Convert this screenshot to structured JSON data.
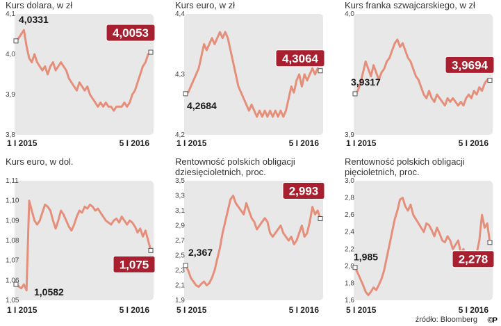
{
  "source": "źródło: Bloomberg",
  "logo": "©P",
  "chart_data": [
    {
      "type": "line",
      "title": "Kurs dolara, w zł",
      "yticks": [
        "4,1",
        "4,0",
        "3,9",
        "3,8"
      ],
      "ylim": [
        3.8,
        4.1
      ],
      "xticks": [
        "1 I 2015",
        "5 I 2016"
      ],
      "start_label": "4,0331",
      "end_label": "4,0053",
      "start_value": 4.0331,
      "end_value": 4.0053,
      "values": [
        4.033,
        4.04,
        4.05,
        4.06,
        4.02,
        3.99,
        3.98,
        4.0,
        3.98,
        3.97,
        3.96,
        3.97,
        3.95,
        3.97,
        3.98,
        3.96,
        3.97,
        3.98,
        3.97,
        3.96,
        3.94,
        3.93,
        3.92,
        3.91,
        3.93,
        3.92,
        3.91,
        3.92,
        3.9,
        3.89,
        3.88,
        3.87,
        3.88,
        3.87,
        3.88,
        3.87,
        3.87,
        3.86,
        3.87,
        3.87,
        3.87,
        3.88,
        3.87,
        3.88,
        3.9,
        3.91,
        3.93,
        3.95,
        3.97,
        3.98,
        4.0,
        4.005
      ]
    },
    {
      "type": "line",
      "title": "Kurs euro, w zł",
      "yticks": [
        "4,4",
        "4,3",
        "4,2"
      ],
      "ylim": [
        4.2,
        4.4
      ],
      "xticks": [
        "1 I 2015",
        "5 I 2016"
      ],
      "start_label": "4,2684",
      "end_label": "4,3064",
      "start_value": 4.2684,
      "end_value": 4.3064,
      "values": [
        4.268,
        4.27,
        4.28,
        4.29,
        4.3,
        4.31,
        4.33,
        4.35,
        4.34,
        4.35,
        4.36,
        4.35,
        4.36,
        4.37,
        4.36,
        4.37,
        4.36,
        4.34,
        4.32,
        4.3,
        4.28,
        4.27,
        4.26,
        4.25,
        4.24,
        4.25,
        4.24,
        4.23,
        4.24,
        4.23,
        4.24,
        4.23,
        4.24,
        4.23,
        4.24,
        4.23,
        4.24,
        4.23,
        4.24,
        4.26,
        4.28,
        4.27,
        4.29,
        4.3,
        4.28,
        4.3,
        4.29,
        4.3,
        4.31,
        4.3,
        4.31,
        4.306
      ]
    },
    {
      "type": "line",
      "title": "Kurs franka szwajcarskiego, w zł",
      "yticks": [
        "4,0",
        "3,9"
      ],
      "ylim": [
        3.82,
        4.15
      ],
      "xticks": [
        "1 I 2015",
        "5 I 2016"
      ],
      "start_label": "3,9317",
      "end_label": "3,9694",
      "start_value": 3.9317,
      "end_value": 3.9694,
      "values": [
        3.932,
        3.94,
        3.96,
        3.99,
        4.02,
        4.0,
        3.98,
        4.01,
        3.99,
        3.97,
        3.99,
        4.0,
        4.02,
        4.03,
        4.05,
        4.07,
        4.08,
        4.06,
        4.07,
        4.05,
        4.03,
        4.02,
        4.0,
        3.98,
        3.97,
        3.95,
        3.93,
        3.92,
        3.94,
        3.92,
        3.91,
        3.93,
        3.92,
        3.91,
        3.9,
        3.92,
        3.91,
        3.92,
        3.91,
        3.9,
        3.91,
        3.9,
        3.92,
        3.93,
        3.92,
        3.94,
        3.93,
        3.95,
        3.94,
        3.96,
        3.97,
        3.969
      ]
    },
    {
      "type": "line",
      "title": "Kurs euro, w dol.",
      "yticks": [
        "1,11",
        "1,10",
        "1,09",
        "1,08",
        "1,07",
        "1,06",
        "1,05"
      ],
      "ylim": [
        1.05,
        1.11
      ],
      "xticks": [
        "1 I 2015",
        "5 I 2016"
      ],
      "start_label": "1,0582",
      "end_label": "1,075",
      "start_value": 1.0582,
      "end_value": 1.075,
      "values": [
        1.058,
        1.057,
        1.056,
        1.058,
        1.055,
        1.1,
        1.095,
        1.09,
        1.088,
        1.09,
        1.094,
        1.098,
        1.097,
        1.095,
        1.09,
        1.086,
        1.09,
        1.095,
        1.093,
        1.09,
        1.087,
        1.085,
        1.088,
        1.092,
        1.095,
        1.094,
        1.097,
        1.096,
        1.098,
        1.097,
        1.095,
        1.096,
        1.094,
        1.092,
        1.09,
        1.089,
        1.088,
        1.09,
        1.091,
        1.089,
        1.092,
        1.09,
        1.088,
        1.09,
        1.089,
        1.087,
        1.084,
        1.086,
        1.082,
        1.085,
        1.08,
        1.075
      ]
    },
    {
      "type": "line",
      "title": "Rentowność polskich obligacji dziesięcioletnich, proc.",
      "yticks": [
        "3,5",
        "3,3",
        "3,1",
        "2,9",
        "2,7",
        "2,5",
        "2,3",
        "2,1",
        "1,9"
      ],
      "ylim": [
        1.9,
        3.5
      ],
      "xticks": [
        "5 I 2015",
        "5 I 2016"
      ],
      "start_label": "2,367",
      "end_label": "2,993",
      "start_value": 2.367,
      "end_value": 2.993,
      "values": [
        2.367,
        2.3,
        2.2,
        2.15,
        2.1,
        2.08,
        2.12,
        2.15,
        2.1,
        2.13,
        2.2,
        2.3,
        2.45,
        2.6,
        2.8,
        2.95,
        3.1,
        3.25,
        3.3,
        3.2,
        3.15,
        3.1,
        3.05,
        3.2,
        3.1,
        3.0,
        2.95,
        2.85,
        2.9,
        2.95,
        3.0,
        2.95,
        2.8,
        2.75,
        2.8,
        2.85,
        2.9,
        2.8,
        2.75,
        2.7,
        2.75,
        2.65,
        2.7,
        2.8,
        2.9,
        2.75,
        2.8,
        2.95,
        3.15,
        3.05,
        3.1,
        2.993
      ]
    },
    {
      "type": "line",
      "title": "Rentowność polskich obligacji pięcioletnich, proc.",
      "yticks": [
        "3,0",
        "2,8",
        "2,6",
        "2,4",
        "2,2",
        "2,0",
        "1,8",
        "1,6"
      ],
      "ylim": [
        1.6,
        3.0
      ],
      "xticks": [
        "5 I 2015",
        "5 I 2016"
      ],
      "start_label": "1,985",
      "end_label": "2,278",
      "start_value": 1.985,
      "end_value": 2.278,
      "values": [
        1.985,
        1.92,
        1.85,
        1.78,
        1.7,
        1.66,
        1.7,
        1.75,
        1.72,
        1.78,
        1.85,
        1.95,
        2.1,
        2.25,
        2.4,
        2.55,
        2.65,
        2.78,
        2.8,
        2.7,
        2.65,
        2.72,
        2.6,
        2.55,
        2.5,
        2.45,
        2.4,
        2.5,
        2.48,
        2.42,
        2.35,
        2.45,
        2.38,
        2.3,
        2.28,
        2.35,
        2.3,
        2.2,
        2.25,
        2.3,
        2.15,
        2.2,
        2.1,
        2.05,
        2.1,
        2.05,
        2.15,
        2.3,
        2.6,
        2.45,
        2.5,
        2.278
      ]
    }
  ]
}
